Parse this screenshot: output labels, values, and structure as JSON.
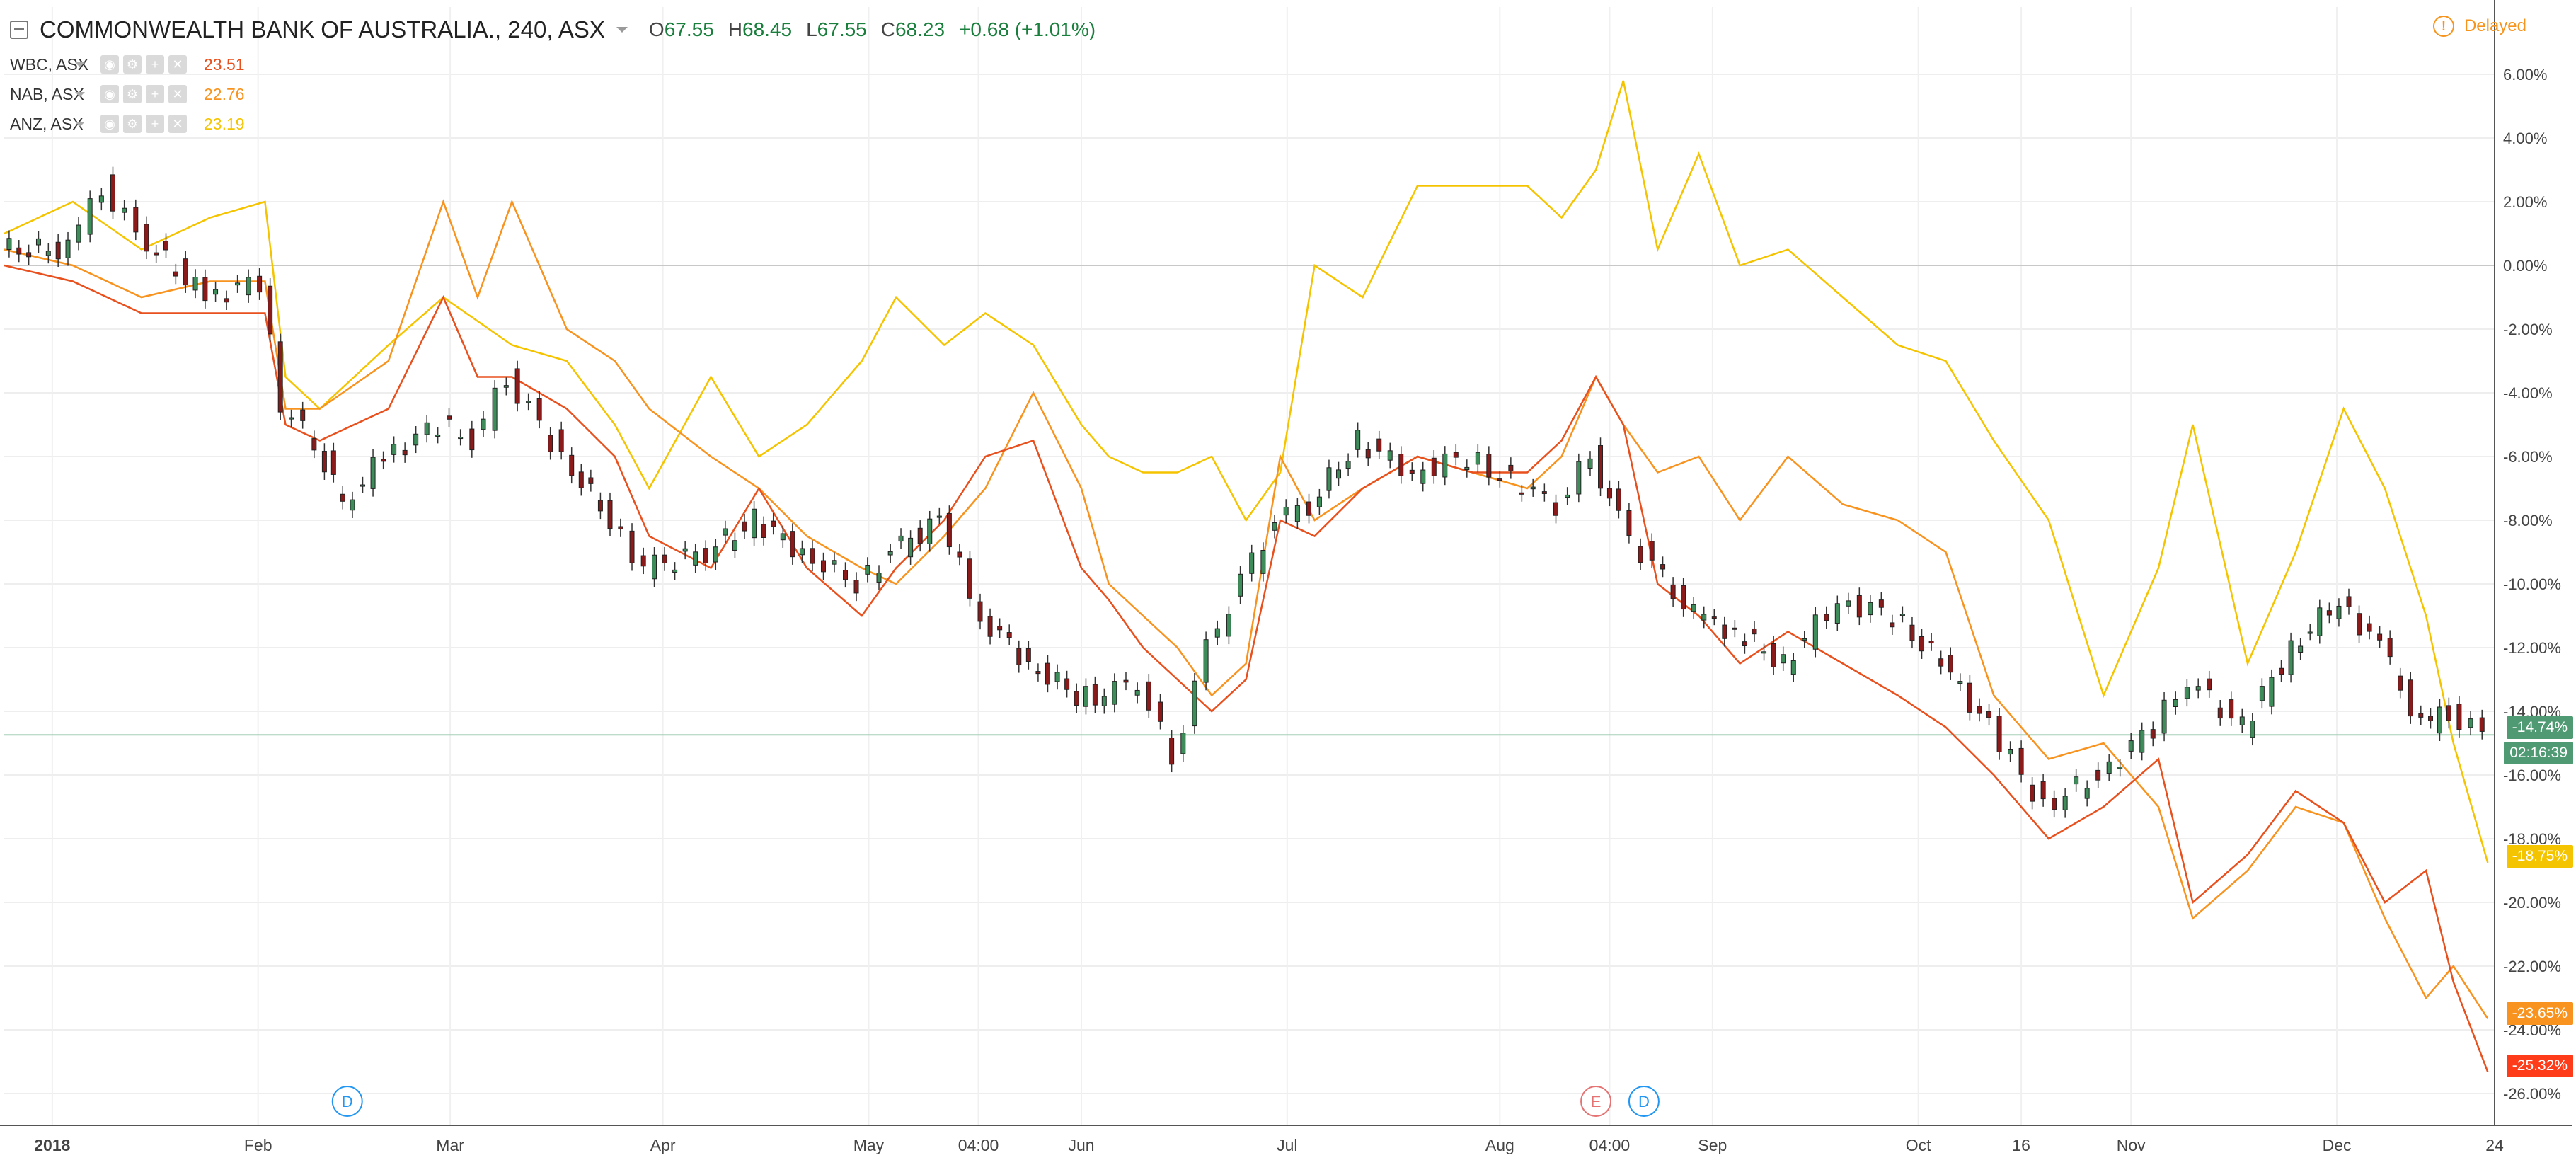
{
  "header": {
    "title": "COMMONWEALTH BANK OF AUSTRALIA., 240, ASX",
    "ohlc": [
      {
        "key": "O",
        "value": "67.55"
      },
      {
        "key": "H",
        "value": "68.45"
      },
      {
        "key": "L",
        "value": "67.55"
      },
      {
        "key": "C",
        "value": "68.23"
      }
    ],
    "change": "+0.68 (+1.01%)"
  },
  "compare": [
    {
      "name": "WBC, ASX",
      "value": "23.51",
      "color": "#e8501e"
    },
    {
      "name": "NAB, ASX",
      "value": "22.76",
      "color": "#f7931e"
    },
    {
      "name": "ANZ, ASX",
      "value": "23.19",
      "color": "#f5c400"
    }
  ],
  "status": {
    "delayed_label": "Delayed",
    "delayed_color": "#f7941d"
  },
  "price_tags": [
    {
      "text": "-14.74%",
      "color": "#4f9a73"
    },
    {
      "text": "02:16:39",
      "color": "#4f9a73"
    },
    {
      "text": "-18.75%",
      "color": "#f5c400"
    },
    {
      "text": "-23.65%",
      "color": "#f7931e"
    },
    {
      "text": "-25.32%",
      "color": "#ff3c1a"
    }
  ],
  "events": [
    {
      "letter": "D",
      "date": "2018-02-14",
      "color": "#2196f3"
    },
    {
      "letter": "E",
      "date": "2018-08-15",
      "color": "#e57373"
    },
    {
      "letter": "D",
      "date": "2018-08-22",
      "color": "#2196f3"
    }
  ],
  "chart_data": {
    "type": "line",
    "ylabel": "",
    "y_unit": "%",
    "ylim": [
      -27,
      7
    ],
    "y_ticks": [
      "6.00%",
      "4.00%",
      "2.00%",
      "0.00%",
      "-2.00%",
      "-4.00%",
      "-6.00%",
      "-8.00%",
      "-10.00%",
      "-12.00%",
      "-14.00%",
      "-16.00%",
      "-18.00%",
      "-20.00%",
      "-22.00%",
      "-24.00%",
      "-26.00%"
    ],
    "xlim": [
      "2017-12-26",
      "2018-12-24"
    ],
    "x_ticks": [
      {
        "label": "2018",
        "date": "2018-01-02",
        "bold": true
      },
      {
        "label": "Feb",
        "date": "2018-02-01"
      },
      {
        "label": "Mar",
        "date": "2018-03-01"
      },
      {
        "label": "Apr",
        "date": "2018-04-01"
      },
      {
        "label": "May",
        "date": "2018-05-01"
      },
      {
        "label": "04:00",
        "date": "2018-05-17"
      },
      {
        "label": "Jun",
        "date": "2018-06-01"
      },
      {
        "label": "Jul",
        "date": "2018-07-01"
      },
      {
        "label": "Aug",
        "date": "2018-08-01"
      },
      {
        "label": "04:00",
        "date": "2018-08-17"
      },
      {
        "label": "Sep",
        "date": "2018-09-01"
      },
      {
        "label": "Oct",
        "date": "2018-10-01"
      },
      {
        "label": "16",
        "date": "2018-10-16"
      },
      {
        "label": "Nov",
        "date": "2018-11-01"
      },
      {
        "label": "Dec",
        "date": "2018-12-01"
      },
      {
        "label": "24",
        "date": "2018-12-24"
      }
    ],
    "grid": true,
    "zero_line": 0,
    "current_line": -14.74,
    "series": [
      {
        "name": "ANZ, ASX",
        "color": "#f5c400",
        "x": [
          "2017-12-26",
          "2018-01-05",
          "2018-01-15",
          "2018-01-25",
          "2018-02-02",
          "2018-02-05",
          "2018-02-10",
          "2018-02-20",
          "2018-02-28",
          "2018-03-10",
          "2018-03-18",
          "2018-03-25",
          "2018-03-30",
          "2018-04-08",
          "2018-04-15",
          "2018-04-22",
          "2018-04-30",
          "2018-05-05",
          "2018-05-12",
          "2018-05-18",
          "2018-05-25",
          "2018-06-01",
          "2018-06-05",
          "2018-06-10",
          "2018-06-15",
          "2018-06-20",
          "2018-06-25",
          "2018-06-30",
          "2018-07-05",
          "2018-07-12",
          "2018-07-20",
          "2018-07-28",
          "2018-08-05",
          "2018-08-10",
          "2018-08-15",
          "2018-08-19",
          "2018-08-24",
          "2018-08-30",
          "2018-09-05",
          "2018-09-12",
          "2018-09-20",
          "2018-09-28",
          "2018-10-05",
          "2018-10-12",
          "2018-10-20",
          "2018-10-28",
          "2018-11-05",
          "2018-11-10",
          "2018-11-18",
          "2018-11-25",
          "2018-12-02",
          "2018-12-08",
          "2018-12-14",
          "2018-12-18",
          "2018-12-23"
        ],
        "y": [
          1.0,
          2.0,
          0.5,
          1.5,
          2.0,
          -3.5,
          -4.5,
          -2.5,
          -1.0,
          -2.5,
          -3.0,
          -5.0,
          -7.0,
          -3.5,
          -6.0,
          -5.0,
          -3.0,
          -1.0,
          -2.5,
          -1.5,
          -2.5,
          -5.0,
          -6.0,
          -6.5,
          -6.5,
          -6.0,
          -8.0,
          -6.5,
          0.0,
          -1.0,
          2.5,
          2.5,
          2.5,
          1.5,
          3.0,
          5.8,
          0.5,
          3.5,
          0.0,
          0.5,
          -1.0,
          -2.5,
          -3.0,
          -5.5,
          -8.0,
          -13.5,
          -9.5,
          -5.0,
          -12.5,
          -9.0,
          -4.5,
          -7.0,
          -11.0,
          -15.0,
          -18.75
        ]
      },
      {
        "name": "NAB, ASX",
        "color": "#f7931e",
        "x": [
          "2017-12-26",
          "2018-01-05",
          "2018-01-15",
          "2018-01-25",
          "2018-02-02",
          "2018-02-05",
          "2018-02-10",
          "2018-02-20",
          "2018-02-28",
          "2018-03-05",
          "2018-03-10",
          "2018-03-18",
          "2018-03-25",
          "2018-03-30",
          "2018-04-08",
          "2018-04-15",
          "2018-04-22",
          "2018-04-30",
          "2018-05-05",
          "2018-05-12",
          "2018-05-18",
          "2018-05-25",
          "2018-06-01",
          "2018-06-05",
          "2018-06-10",
          "2018-06-15",
          "2018-06-20",
          "2018-06-25",
          "2018-06-30",
          "2018-07-05",
          "2018-07-12",
          "2018-07-20",
          "2018-07-28",
          "2018-08-05",
          "2018-08-10",
          "2018-08-15",
          "2018-08-19",
          "2018-08-24",
          "2018-08-30",
          "2018-09-05",
          "2018-09-12",
          "2018-09-20",
          "2018-09-28",
          "2018-10-05",
          "2018-10-12",
          "2018-10-20",
          "2018-10-28",
          "2018-11-05",
          "2018-11-10",
          "2018-11-18",
          "2018-11-25",
          "2018-12-02",
          "2018-12-08",
          "2018-12-14",
          "2018-12-18",
          "2018-12-23"
        ],
        "y": [
          0.5,
          0.0,
          -1.0,
          -0.5,
          -0.5,
          -4.5,
          -4.5,
          -3.0,
          2.0,
          -1.0,
          2.0,
          -2.0,
          -3.0,
          -4.5,
          -6.0,
          -7.0,
          -8.5,
          -9.5,
          -10.0,
          -8.5,
          -7.0,
          -4.0,
          -7.0,
          -10.0,
          -11.0,
          -12.0,
          -13.5,
          -12.5,
          -6.0,
          -8.0,
          -7.0,
          -6.0,
          -6.5,
          -7.0,
          -6.0,
          -3.5,
          -5.0,
          -6.5,
          -6.0,
          -8.0,
          -6.0,
          -7.5,
          -8.0,
          -9.0,
          -13.5,
          -15.5,
          -15.0,
          -17.0,
          -20.5,
          -19.0,
          -17.0,
          -17.5,
          -20.5,
          -23.0,
          -22.0,
          -23.65
        ]
      },
      {
        "name": "WBC, ASX",
        "color": "#e8501e",
        "x": [
          "2017-12-26",
          "2018-01-05",
          "2018-01-15",
          "2018-01-25",
          "2018-02-02",
          "2018-02-05",
          "2018-02-10",
          "2018-02-20",
          "2018-02-28",
          "2018-03-05",
          "2018-03-10",
          "2018-03-18",
          "2018-03-25",
          "2018-03-30",
          "2018-04-08",
          "2018-04-15",
          "2018-04-22",
          "2018-04-30",
          "2018-05-05",
          "2018-05-12",
          "2018-05-18",
          "2018-05-25",
          "2018-06-01",
          "2018-06-05",
          "2018-06-10",
          "2018-06-15",
          "2018-06-20",
          "2018-06-25",
          "2018-06-30",
          "2018-07-05",
          "2018-07-12",
          "2018-07-20",
          "2018-07-28",
          "2018-08-05",
          "2018-08-10",
          "2018-08-15",
          "2018-08-19",
          "2018-08-24",
          "2018-08-30",
          "2018-09-05",
          "2018-09-12",
          "2018-09-20",
          "2018-09-28",
          "2018-10-05",
          "2018-10-12",
          "2018-10-20",
          "2018-10-28",
          "2018-11-05",
          "2018-11-10",
          "2018-11-18",
          "2018-11-25",
          "2018-12-02",
          "2018-12-08",
          "2018-12-14",
          "2018-12-18",
          "2018-12-23"
        ],
        "y": [
          0.0,
          -0.5,
          -1.5,
          -1.5,
          -1.5,
          -5.0,
          -5.5,
          -4.5,
          -1.0,
          -3.5,
          -3.5,
          -4.5,
          -6.0,
          -8.5,
          -9.5,
          -7.0,
          -9.5,
          -11.0,
          -9.5,
          -8.0,
          -6.0,
          -5.5,
          -9.5,
          -10.5,
          -12.0,
          -13.0,
          -14.0,
          -13.0,
          -8.0,
          -8.5,
          -7.0,
          -6.0,
          -6.5,
          -6.5,
          -5.5,
          -3.5,
          -5.0,
          -10.0,
          -11.0,
          -12.5,
          -11.5,
          -12.5,
          -13.5,
          -14.5,
          -16.0,
          -18.0,
          -17.0,
          -15.5,
          -20.0,
          -18.5,
          -16.5,
          -17.5,
          -20.0,
          -19.0,
          -22.5,
          -25.32
        ]
      },
      {
        "name": "COMMONWEALTH BANK OF AUSTRALIA., 240, ASX",
        "color": "#333333",
        "x": [
          "2017-12-26",
          "2018-01-05",
          "2018-01-10",
          "2018-01-15",
          "2018-01-25",
          "2018-02-02",
          "2018-02-05",
          "2018-02-10",
          "2018-02-14",
          "2018-02-20",
          "2018-02-28",
          "2018-03-05",
          "2018-03-10",
          "2018-03-18",
          "2018-03-25",
          "2018-03-30",
          "2018-04-08",
          "2018-04-15",
          "2018-04-22",
          "2018-04-30",
          "2018-05-05",
          "2018-05-12",
          "2018-05-18",
          "2018-05-25",
          "2018-06-01",
          "2018-06-05",
          "2018-06-10",
          "2018-06-15",
          "2018-06-20",
          "2018-06-25",
          "2018-06-30",
          "2018-07-05",
          "2018-07-12",
          "2018-07-20",
          "2018-07-28",
          "2018-08-05",
          "2018-08-10",
          "2018-08-15",
          "2018-08-19",
          "2018-08-24",
          "2018-08-30",
          "2018-09-05",
          "2018-09-12",
          "2018-09-20",
          "2018-09-28",
          "2018-10-05",
          "2018-10-12",
          "2018-10-20",
          "2018-10-28",
          "2018-11-05",
          "2018-11-10",
          "2018-11-18",
          "2018-11-25",
          "2018-12-02",
          "2018-12-08",
          "2018-12-14",
          "2018-12-18",
          "2018-12-23"
        ],
        "y": [
          0.5,
          0.5,
          2.5,
          1.0,
          -1.0,
          -0.5,
          -4.5,
          -5.5,
          -7.5,
          -6.0,
          -5.0,
          -5.5,
          -3.5,
          -6.0,
          -8.0,
          -9.5,
          -9.0,
          -8.0,
          -9.0,
          -10.0,
          -9.0,
          -8.0,
          -11.0,
          -12.5,
          -13.5,
          -13.5,
          -13.0,
          -15.5,
          -12.0,
          -10.0,
          -8.0,
          -7.5,
          -5.5,
          -6.5,
          -6.0,
          -7.0,
          -7.5,
          -6.0,
          -8.0,
          -9.5,
          -11.0,
          -11.5,
          -12.5,
          -10.5,
          -11.0,
          -12.5,
          -14.5,
          -17.0,
          -16.0,
          -14.5,
          -13.0,
          -14.5,
          -12.0,
          -10.5,
          -12.0,
          -14.5,
          -14.0,
          -14.74
        ]
      }
    ]
  }
}
